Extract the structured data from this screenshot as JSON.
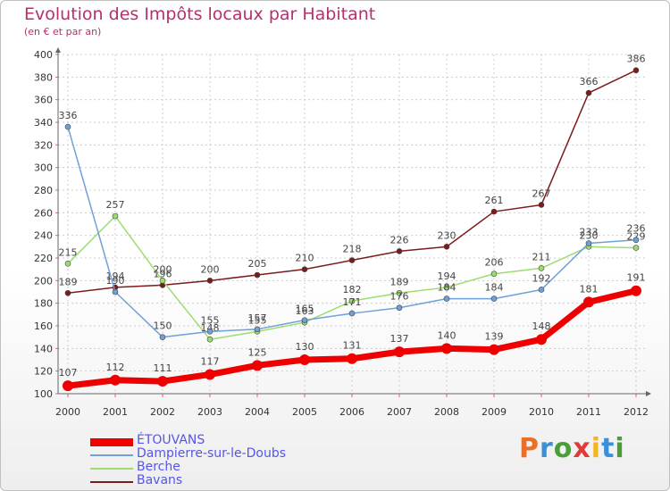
{
  "title": "Evolution des Impôts locaux par Habitant",
  "subtitle": "(en € et par an)",
  "logo": {
    "letters": [
      "P",
      "r",
      "o",
      "x",
      "i",
      "t",
      "i"
    ],
    "colors": [
      "#e8702a",
      "#3a8fd8",
      "#4a9e3a",
      "#e03a3a",
      "#f2b625",
      "#3a8fd8",
      "#4a9e3a"
    ]
  },
  "chart_data": {
    "type": "line",
    "title": "Evolution des Impôts locaux par Habitant",
    "ylabel": "(en € et par an)",
    "xlabel": "",
    "x": [
      "2000",
      "2001",
      "2002",
      "2003",
      "2004",
      "2005",
      "2006",
      "2007",
      "2008",
      "2009",
      "2010",
      "2011",
      "2012"
    ],
    "ylim": [
      100,
      400
    ],
    "yticks": [
      100,
      120,
      140,
      160,
      180,
      200,
      220,
      240,
      260,
      280,
      300,
      320,
      340,
      360,
      380,
      400
    ],
    "grid": true,
    "legend_position": "bottom-left",
    "series": [
      {
        "name": "ÉTOUVANS",
        "color": "#ee0000",
        "values": [
          107,
          112,
          111,
          117,
          125,
          130,
          131,
          137,
          140,
          139,
          148,
          181,
          191
        ],
        "labels": [
          "107",
          "112",
          "111",
          "117",
          "125",
          "130",
          "131",
          "137",
          "140",
          "139",
          "148",
          "181",
          "191"
        ]
      },
      {
        "name": "Dampierre-sur-le-Doubs",
        "color": "#6fa0d8",
        "values": [
          336,
          190,
          150,
          155,
          157,
          165,
          171,
          176,
          184,
          184,
          192,
          233,
          236
        ],
        "labels": [
          "336",
          "190",
          "150",
          "155",
          "157",
          "165",
          "171",
          "176",
          "184",
          "184",
          "192",
          "233",
          "236"
        ]
      },
      {
        "name": "Berche",
        "color": "#9ddc6e",
        "values": [
          215,
          257,
          200,
          148,
          155,
          163,
          182,
          189,
          194,
          206,
          211,
          230,
          229
        ],
        "labels": [
          "215",
          "257",
          "200",
          "148",
          "155",
          "163",
          "182",
          "189",
          "194",
          "206",
          "211",
          "230",
          "229"
        ]
      },
      {
        "name": "Bavans",
        "color": "#7a1c1c",
        "values": [
          189,
          194,
          196,
          200,
          205,
          210,
          218,
          226,
          230,
          261,
          267,
          366,
          386
        ],
        "labels": [
          "189",
          "194",
          "196",
          "200",
          "205",
          "210",
          "218",
          "226",
          "230",
          "261",
          "267",
          "366",
          "386"
        ]
      }
    ]
  }
}
